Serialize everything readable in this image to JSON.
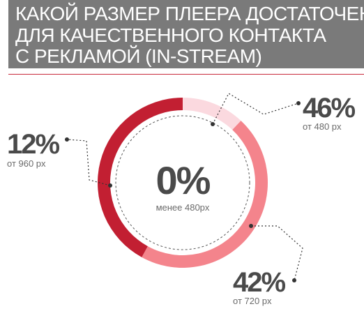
{
  "title_lines": [
    "КАКОЙ РАЗМЕР ПЛЕЕРА ДОСТАТОЧЕН",
    "ДЛЯ КАЧЕСТВЕННОГО КОНТАКТА",
    "С РЕКЛАМОЙ (IN-STREAM)"
  ],
  "colors": {
    "header_bg": "#7a7a7a",
    "rule": "#c8283b"
  },
  "chart_data": {
    "type": "pie",
    "variant": "donut",
    "slices": [
      {
        "label": "от 480 px",
        "value": 46,
        "display": "46%",
        "color": "#f4848c"
      },
      {
        "label": "от 720 px",
        "value": 42,
        "display": "42%",
        "color": "#c21f32"
      },
      {
        "label": "от 960 px",
        "value": 12,
        "display": "12%",
        "color": "#fbd9df"
      }
    ],
    "center": {
      "value": "0%",
      "label": "менее 480px"
    }
  }
}
